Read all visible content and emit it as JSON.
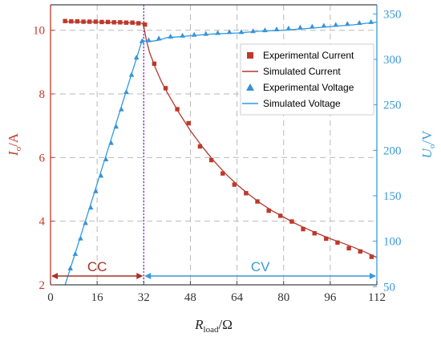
{
  "chart_data": {
    "type": "line",
    "x_axis": {
      "label_main": "R",
      "label_sub": "load",
      "label_unit": "/Ω",
      "range": [
        0,
        112
      ],
      "ticks": [
        0,
        16,
        32,
        48,
        64,
        80,
        96,
        112
      ]
    },
    "y_left": {
      "label_main": "I",
      "label_sub": "o",
      "label_unit": "/A",
      "range": [
        2,
        10.8
      ],
      "ticks": [
        2,
        4,
        6,
        8,
        10
      ],
      "color": "#c0392b"
    },
    "y_right": {
      "label_main": "U",
      "label_sub": "o",
      "label_unit": "/V",
      "range": [
        52,
        360
      ],
      "ticks": [
        50,
        100,
        150,
        200,
        250,
        300,
        350
      ],
      "color": "#3a9ad9"
    },
    "grid": true,
    "legend_position": "top-right",
    "series": [
      {
        "name": "Experimental Current",
        "kind": "markers",
        "marker": "square",
        "axis": "left",
        "color": "#c0392b",
        "x": [
          5,
          7.1,
          9.2,
          11.3,
          13.4,
          15.5,
          17.6,
          19.7,
          21.8,
          23.9,
          26.0,
          28.1,
          30.2,
          32.4,
          35.6,
          39.5,
          43.5,
          47.4,
          51.3,
          55.2,
          59.1,
          63.1,
          67.1,
          71.0,
          74.9,
          78.9,
          82.8,
          86.7,
          90.6,
          94.6,
          98.5,
          102.4,
          106.3,
          110.2
        ],
        "values": [
          10.29,
          10.28,
          10.28,
          10.27,
          10.27,
          10.27,
          10.26,
          10.26,
          10.25,
          10.25,
          10.24,
          10.24,
          10.22,
          10.18,
          8.95,
          8.18,
          7.52,
          7.08,
          6.35,
          5.92,
          5.5,
          5.15,
          4.88,
          4.62,
          4.33,
          4.17,
          3.99,
          3.75,
          3.62,
          3.45,
          3.33,
          3.15,
          3.05,
          2.88
        ]
      },
      {
        "name": "Simulated Current",
        "kind": "line",
        "axis": "left",
        "color": "#b03a2e",
        "x": [
          5,
          10,
          15,
          20,
          25,
          31.5,
          32,
          33,
          34,
          36,
          38,
          40,
          44,
          48,
          52,
          56,
          60,
          64,
          68,
          72,
          76,
          80,
          84,
          88,
          92,
          96,
          100,
          104,
          108,
          112
        ],
        "values": [
          10.27,
          10.26,
          10.26,
          10.25,
          10.24,
          10.22,
          10.12,
          9.65,
          9.3,
          8.82,
          8.4,
          8.05,
          7.42,
          6.85,
          6.35,
          5.9,
          5.5,
          5.15,
          4.85,
          4.57,
          4.33,
          4.13,
          3.93,
          3.76,
          3.6,
          3.45,
          3.32,
          3.18,
          3.03,
          2.86
        ]
      },
      {
        "name": "Experimental Voltage",
        "kind": "markers",
        "marker": "triangle",
        "axis": "right",
        "color": "#3a8fd6",
        "x": [
          6.8,
          8.5,
          10.3,
          12.0,
          13.8,
          15.5,
          17.3,
          19.0,
          20.8,
          22.5,
          24.3,
          26.0,
          27.8,
          29.5,
          31.4,
          33.7,
          37.2,
          41.2,
          45.3,
          49.3,
          53.3,
          57.4,
          61.4,
          65.5,
          69.5,
          73.6,
          77.6,
          81.7,
          85.7,
          89.8,
          93.8,
          97.9,
          101.9,
          106.0,
          110.0
        ],
        "values": [
          70,
          86,
          103,
          120,
          137,
          155,
          172,
          190,
          208,
          226,
          245,
          264,
          283,
          302,
          320,
          321,
          323,
          325,
          326,
          327,
          328,
          329,
          330,
          330,
          331,
          332,
          333,
          334,
          335,
          336,
          337,
          338,
          339,
          340,
          341
        ]
      },
      {
        "name": "Simulated Voltage",
        "kind": "line",
        "axis": "right",
        "color": "#2f9be0",
        "x": [
          5,
          10,
          15,
          20,
          25,
          30,
          31.5,
          32,
          33,
          35,
          37,
          40,
          45,
          48,
          56,
          64,
          72,
          80,
          88,
          96,
          104,
          112
        ],
        "values": [
          52,
          102,
          153,
          204,
          255,
          306,
          322,
          320,
          320,
          320,
          321,
          324,
          325,
          326,
          328,
          329,
          331,
          332,
          334,
          336,
          338,
          341
        ]
      }
    ],
    "regions": [
      {
        "label": "CC",
        "from": 0,
        "to": 32,
        "color": "#a93226"
      },
      {
        "label": "CV",
        "from": 32,
        "to": 112,
        "color": "#3a9ad9"
      }
    ],
    "divider_x": 32,
    "divider_color": "#9b30d9"
  }
}
